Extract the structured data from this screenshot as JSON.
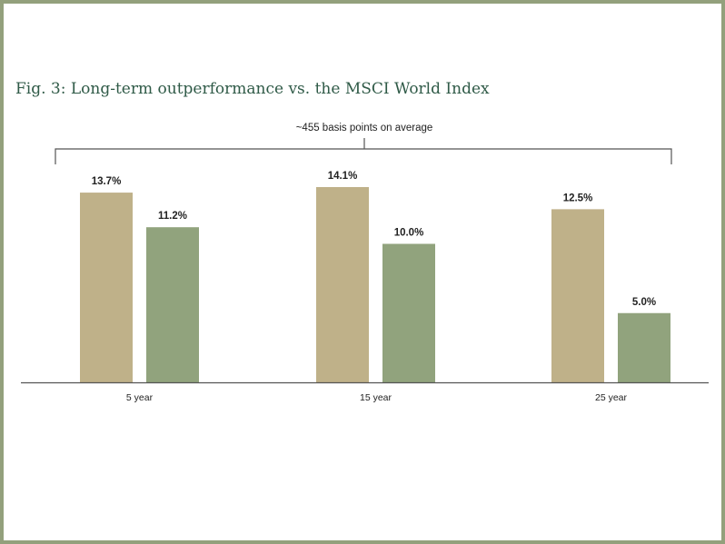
{
  "title": "Fig. 3: Long-term outperformance vs. the MSCI World Index",
  "colors": {
    "frame": "#93a07c",
    "title": "#2f5a47",
    "series_a": "#bfb189",
    "series_b": "#91a37d",
    "axis": "#555555",
    "text": "#222222"
  },
  "chart_data": {
    "type": "bar",
    "title": "",
    "categories": [
      "5 year",
      "15 year",
      "25 year"
    ],
    "series": [
      {
        "values": [
          13.7,
          14.1,
          12.5
        ],
        "labels": [
          "13.7%",
          "14.1%",
          "12.5%"
        ]
      },
      {
        "values": [
          11.2,
          10.0,
          5.0
        ],
        "labels": [
          "11.2%",
          "10.0%",
          "5.0%"
        ]
      }
    ],
    "annotation": "~455 basis points on average",
    "ylim": [
      0,
      15.0
    ],
    "grid": false,
    "legend": "none"
  }
}
